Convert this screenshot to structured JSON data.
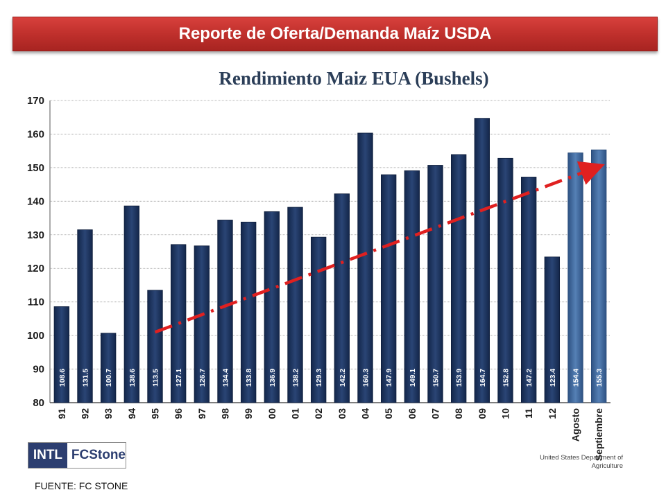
{
  "header": {
    "title": "Reporte de Oferta/Demanda Maíz USDA"
  },
  "chart_data": {
    "type": "bar",
    "title": "Rendimiento Maiz EUA (Bushels)",
    "xlabel": "",
    "ylabel": "",
    "ylim": [
      80,
      170
    ],
    "yticks": [
      80,
      90,
      100,
      110,
      120,
      130,
      140,
      150,
      160,
      170
    ],
    "grid": true,
    "categories": [
      "91",
      "92",
      "93",
      "94",
      "95",
      "96",
      "97",
      "98",
      "99",
      "00",
      "01",
      "02",
      "03",
      "04",
      "05",
      "06",
      "07",
      "08",
      "09",
      "10",
      "11",
      "12",
      "Agosto",
      "Septiembre"
    ],
    "values": [
      108.6,
      131.5,
      100.7,
      138.6,
      113.5,
      127.1,
      126.7,
      134.4,
      133.8,
      136.9,
      138.2,
      129.3,
      142.2,
      160.3,
      147.9,
      149.1,
      150.7,
      153.9,
      164.7,
      152.8,
      147.2,
      123.4,
      154.4,
      155.3
    ],
    "data_labels": [
      "108.6",
      "131.5",
      "100.7",
      "138.6",
      "113.5",
      "127.1",
      "126.7",
      "134.4",
      "133.8",
      "136.9",
      "138.2",
      "129.3",
      "142.2",
      "160.3",
      "147.9",
      "149.1",
      "150.7",
      "153.9",
      "164.7",
      "152.8",
      "147.2",
      "123.4",
      "154.4",
      "155.3"
    ],
    "bar_color": "#1c3258",
    "highlight_color": "#3d6496",
    "highlight_categories": [
      "Agosto",
      "Septiembre"
    ],
    "trend_line": {
      "from_category": "95",
      "from_value": 101,
      "to_category": "Septiembre",
      "to_value": 150,
      "color": "#e02020",
      "style": "dash-dot-arrow"
    }
  },
  "footer": {
    "logo_left": "INTL",
    "logo_right": "FCStone",
    "usda_line1": "United States Department of",
    "usda_line2": "Agriculture",
    "source": "FUENTE: FC STONE"
  }
}
